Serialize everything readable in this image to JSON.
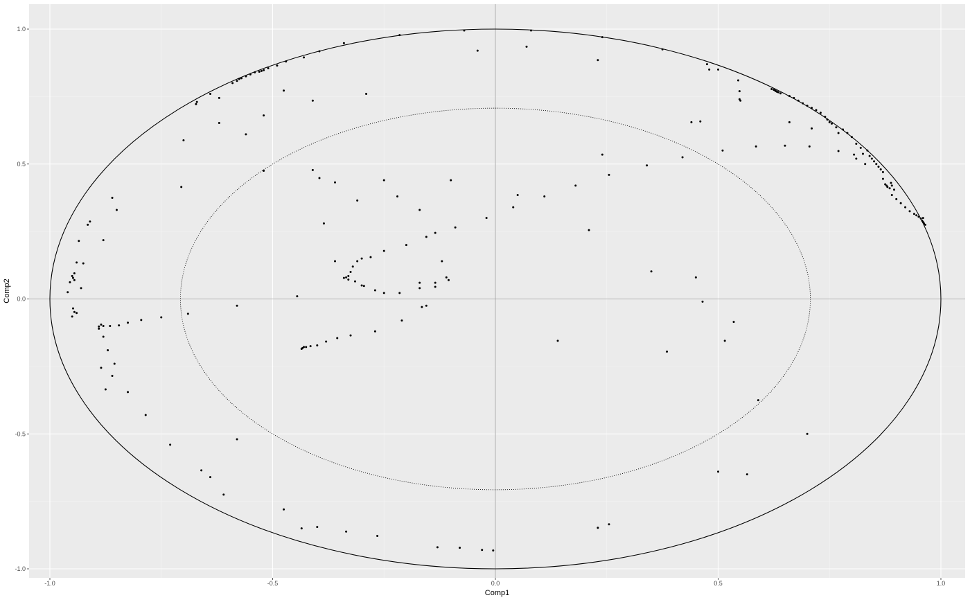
{
  "chart_data": {
    "type": "scatter",
    "xlabel": "Comp1",
    "ylabel": "Comp2",
    "xlim": [
      -1.0,
      1.0
    ],
    "ylim": [
      -1.0,
      1.0
    ],
    "x_ticks": [
      -1.0,
      -0.5,
      0.0,
      0.5,
      1.0
    ],
    "y_ticks": [
      -1.0,
      -0.5,
      0.0,
      0.5,
      1.0
    ],
    "x_tick_labels": [
      "-1.0",
      "-0.5",
      "0.0",
      "0.5",
      "1.0"
    ],
    "y_tick_labels": [
      "-1.0",
      "-0.5",
      "0.0",
      "0.5",
      "1.0"
    ],
    "grid": true,
    "reference_circles": [
      {
        "radius": 1.0,
        "style": "solid"
      },
      {
        "radius": 0.707,
        "style": "dotted"
      }
    ],
    "colors": {
      "panel": "#ebebeb",
      "grid_major": "#ffffff",
      "grid_minor": "#f5f5f5",
      "points": "#000000",
      "circle": "#000000",
      "zero_lines": "#999999"
    },
    "points": [
      [
        -0.07,
        0.995
      ],
      [
        0.08,
        0.995
      ],
      [
        0.24,
        0.97
      ],
      [
        0.375,
        0.925
      ],
      [
        -0.215,
        0.978
      ],
      [
        -0.34,
        0.948
      ],
      [
        -0.395,
        0.918
      ],
      [
        -0.43,
        0.895
      ],
      [
        -0.47,
        0.88
      ],
      [
        -0.49,
        0.865
      ],
      [
        -0.51,
        0.855
      ],
      [
        -0.52,
        0.848
      ],
      [
        -0.525,
        0.845
      ],
      [
        -0.53,
        0.842
      ],
      [
        -0.54,
        0.84
      ],
      [
        -0.55,
        0.832
      ],
      [
        -0.56,
        0.825
      ],
      [
        -0.57,
        0.818
      ],
      [
        -0.575,
        0.815
      ],
      [
        -0.58,
        0.808
      ],
      [
        -0.59,
        0.8
      ],
      [
        -0.64,
        0.76
      ],
      [
        -0.67,
        0.73
      ],
      [
        -0.672,
        0.722
      ],
      [
        -0.62,
        0.745
      ],
      [
        -0.62,
        0.652
      ],
      [
        -0.7,
        0.588
      ],
      [
        -0.705,
        0.415
      ],
      [
        -0.56,
        0.61
      ],
      [
        -0.52,
        0.68
      ],
      [
        -0.475,
        0.772
      ],
      [
        -0.41,
        0.735
      ],
      [
        -0.29,
        0.76
      ],
      [
        -0.04,
        0.92
      ],
      [
        0.07,
        0.935
      ],
      [
        0.23,
        0.885
      ],
      [
        -0.86,
        0.375
      ],
      [
        -0.85,
        0.33
      ],
      [
        -0.91,
        0.287
      ],
      [
        -0.915,
        0.275
      ],
      [
        -0.88,
        0.218
      ],
      [
        -0.935,
        0.215
      ],
      [
        -0.94,
        0.135
      ],
      [
        -0.925,
        0.132
      ],
      [
        -0.945,
        0.095
      ],
      [
        -0.95,
        0.085
      ],
      [
        -0.948,
        0.078
      ],
      [
        -0.945,
        0.07
      ],
      [
        -0.955,
        0.062
      ],
      [
        -0.93,
        0.04
      ],
      [
        -0.96,
        0.025
      ],
      [
        -0.948,
        -0.035
      ],
      [
        -0.945,
        -0.048
      ],
      [
        -0.94,
        -0.052
      ],
      [
        -0.95,
        -0.065
      ],
      [
        -0.885,
        -0.095
      ],
      [
        -0.88,
        -0.1
      ],
      [
        -0.89,
        -0.102
      ],
      [
        -0.865,
        -0.1
      ],
      [
        -0.845,
        -0.098
      ],
      [
        -0.825,
        -0.088
      ],
      [
        -0.795,
        -0.078
      ],
      [
        -0.75,
        -0.068
      ],
      [
        -0.89,
        -0.11
      ],
      [
        -0.88,
        -0.14
      ],
      [
        -0.87,
        -0.19
      ],
      [
        -0.855,
        -0.24
      ],
      [
        -0.885,
        -0.255
      ],
      [
        -0.86,
        -0.285
      ],
      [
        -0.875,
        -0.335
      ],
      [
        -0.825,
        -0.345
      ],
      [
        -0.785,
        -0.43
      ],
      [
        -0.73,
        -0.54
      ],
      [
        -0.69,
        -0.055
      ],
      [
        -0.58,
        -0.025
      ],
      [
        -0.52,
        0.475
      ],
      [
        -0.41,
        0.478
      ],
      [
        -0.395,
        0.448
      ],
      [
        -0.36,
        0.432
      ],
      [
        -0.31,
        0.365
      ],
      [
        -0.385,
        0.28
      ],
      [
        -0.25,
        0.44
      ],
      [
        -0.22,
        0.38
      ],
      [
        -0.17,
        0.33
      ],
      [
        -0.1,
        0.44
      ],
      [
        -0.09,
        0.265
      ],
      [
        -0.02,
        0.3
      ],
      [
        -0.2,
        0.2
      ],
      [
        -0.155,
        0.23
      ],
      [
        -0.135,
        0.245
      ],
      [
        -0.12,
        0.14
      ],
      [
        -0.11,
        0.08
      ],
      [
        -0.105,
        0.07
      ],
      [
        -0.135,
        0.06
      ],
      [
        -0.135,
        0.045
      ],
      [
        -0.17,
        0.06
      ],
      [
        -0.17,
        0.04
      ],
      [
        -0.25,
        0.178
      ],
      [
        -0.28,
        0.155
      ],
      [
        -0.3,
        0.15
      ],
      [
        -0.31,
        0.14
      ],
      [
        -0.32,
        0.12
      ],
      [
        -0.325,
        0.1
      ],
      [
        -0.33,
        0.085
      ],
      [
        -0.335,
        0.08
      ],
      [
        -0.34,
        0.078
      ],
      [
        -0.33,
        0.072
      ],
      [
        -0.315,
        0.065
      ],
      [
        -0.3,
        0.05
      ],
      [
        -0.295,
        0.048
      ],
      [
        -0.27,
        0.032
      ],
      [
        -0.25,
        0.022
      ],
      [
        -0.215,
        0.022
      ],
      [
        -0.36,
        0.14
      ],
      [
        -0.445,
        0.01
      ],
      [
        -0.165,
        -0.03
      ],
      [
        -0.155,
        -0.025
      ],
      [
        -0.21,
        -0.08
      ],
      [
        -0.27,
        -0.12
      ],
      [
        -0.325,
        -0.135
      ],
      [
        -0.355,
        -0.145
      ],
      [
        -0.38,
        -0.158
      ],
      [
        -0.4,
        -0.172
      ],
      [
        -0.415,
        -0.175
      ],
      [
        -0.425,
        -0.178
      ],
      [
        -0.43,
        -0.178
      ],
      [
        -0.433,
        -0.182
      ],
      [
        -0.435,
        -0.185
      ],
      [
        -0.58,
        -0.52
      ],
      [
        0.04,
        0.34
      ],
      [
        0.05,
        0.385
      ],
      [
        0.11,
        0.38
      ],
      [
        0.18,
        0.42
      ],
      [
        0.21,
        0.255
      ],
      [
        0.24,
        0.535
      ],
      [
        0.255,
        0.46
      ],
      [
        0.34,
        0.495
      ],
      [
        0.35,
        0.102
      ],
      [
        0.385,
        -0.195
      ],
      [
        0.14,
        -0.155
      ],
      [
        0.42,
        0.525
      ],
      [
        0.44,
        0.655
      ],
      [
        0.46,
        0.658
      ],
      [
        0.45,
        0.08
      ],
      [
        0.465,
        -0.01
      ],
      [
        0.48,
        0.85
      ],
      [
        0.475,
        0.87
      ],
      [
        0.5,
        0.85
      ],
      [
        0.51,
        0.55
      ],
      [
        0.515,
        -0.155
      ],
      [
        0.535,
        -0.085
      ],
      [
        0.545,
        0.81
      ],
      [
        0.548,
        0.77
      ],
      [
        0.548,
        0.74
      ],
      [
        0.55,
        0.735
      ],
      [
        0.585,
        0.565
      ],
      [
        0.59,
        -0.375
      ],
      [
        0.62,
        0.778
      ],
      [
        0.625,
        0.775
      ],
      [
        0.628,
        0.772
      ],
      [
        0.63,
        0.77
      ],
      [
        0.632,
        0.768
      ],
      [
        0.635,
        0.766
      ],
      [
        0.64,
        0.762
      ],
      [
        0.65,
        0.568
      ],
      [
        0.66,
        0.752
      ],
      [
        0.66,
        0.655
      ],
      [
        0.67,
        0.745
      ],
      [
        0.68,
        0.735
      ],
      [
        0.69,
        0.725
      ],
      [
        0.7,
        0.716
      ],
      [
        0.71,
        0.708
      ],
      [
        0.705,
        0.565
      ],
      [
        0.71,
        0.632
      ],
      [
        0.72,
        0.7
      ],
      [
        0.73,
        0.69
      ],
      [
        0.74,
        0.675
      ],
      [
        0.745,
        0.665
      ],
      [
        0.75,
        0.655
      ],
      [
        0.755,
        0.65
      ],
      [
        0.77,
        0.615
      ],
      [
        0.765,
        0.636
      ],
      [
        0.77,
        0.548
      ],
      [
        0.78,
        0.628
      ],
      [
        0.79,
        0.615
      ],
      [
        0.8,
        0.6
      ],
      [
        0.805,
        0.535
      ],
      [
        0.81,
        0.575
      ],
      [
        0.81,
        0.52
      ],
      [
        0.82,
        0.56
      ],
      [
        0.825,
        0.538
      ],
      [
        0.83,
        0.5
      ],
      [
        0.835,
        0.55
      ],
      [
        0.84,
        0.53
      ],
      [
        0.845,
        0.52
      ],
      [
        0.85,
        0.51
      ],
      [
        0.855,
        0.5
      ],
      [
        0.86,
        0.49
      ],
      [
        0.865,
        0.48
      ],
      [
        0.87,
        0.47
      ],
      [
        0.87,
        0.445
      ],
      [
        0.875,
        0.425
      ],
      [
        0.878,
        0.42
      ],
      [
        0.88,
        0.415
      ],
      [
        0.885,
        0.41
      ],
      [
        0.888,
        0.43
      ],
      [
        0.89,
        0.42
      ],
      [
        0.895,
        0.405
      ],
      [
        0.89,
        0.385
      ],
      [
        0.9,
        0.37
      ],
      [
        0.91,
        0.355
      ],
      [
        0.92,
        0.34
      ],
      [
        0.93,
        0.325
      ],
      [
        0.94,
        0.315
      ],
      [
        0.945,
        0.31
      ],
      [
        0.95,
        0.305
      ],
      [
        0.955,
        0.298
      ],
      [
        0.958,
        0.29
      ],
      [
        0.96,
        0.285
      ],
      [
        0.962,
        0.28
      ],
      [
        0.965,
        0.275
      ],
      [
        0.96,
        0.3
      ],
      [
        0.7,
        -0.5
      ],
      [
        0.5,
        -0.64
      ],
      [
        0.565,
        -0.65
      ],
      [
        -0.66,
        -0.635
      ],
      [
        -0.64,
        -0.66
      ],
      [
        -0.61,
        -0.725
      ],
      [
        -0.475,
        -0.78
      ],
      [
        -0.435,
        -0.85
      ],
      [
        -0.4,
        -0.845
      ],
      [
        -0.335,
        -0.862
      ],
      [
        -0.265,
        -0.878
      ],
      [
        -0.13,
        -0.92
      ],
      [
        -0.08,
        -0.922
      ],
      [
        -0.03,
        -0.93
      ],
      [
        -0.005,
        -0.932
      ],
      [
        0.23,
        -0.848
      ],
      [
        0.255,
        -0.835
      ]
    ]
  }
}
